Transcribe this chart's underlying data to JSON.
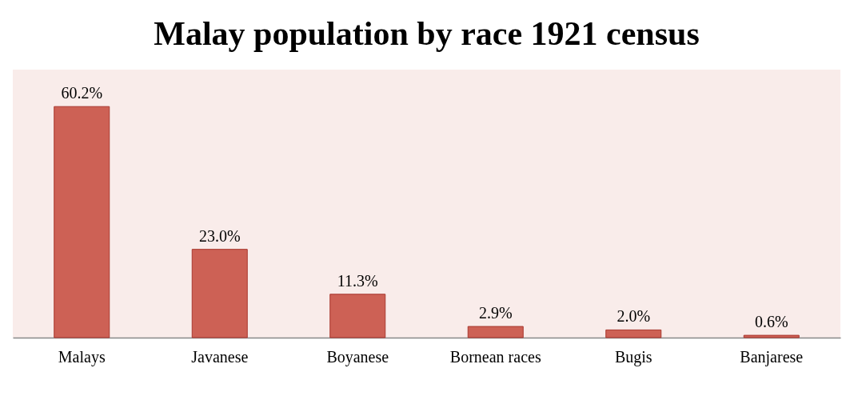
{
  "chart_data": {
    "type": "bar",
    "title": "Malay population by race 1921 census",
    "categories": [
      "Malays",
      "Javanese",
      "Boyanese",
      "Bornean races",
      "Bugis",
      "Banjarese"
    ],
    "values": [
      60.2,
      23.0,
      11.3,
      2.9,
      2.0,
      0.6
    ],
    "value_labels": [
      "60.2%",
      "23.0%",
      "11.3%",
      "2.9%",
      "2.0%",
      "0.6%"
    ],
    "color": "#cd6155"
  }
}
